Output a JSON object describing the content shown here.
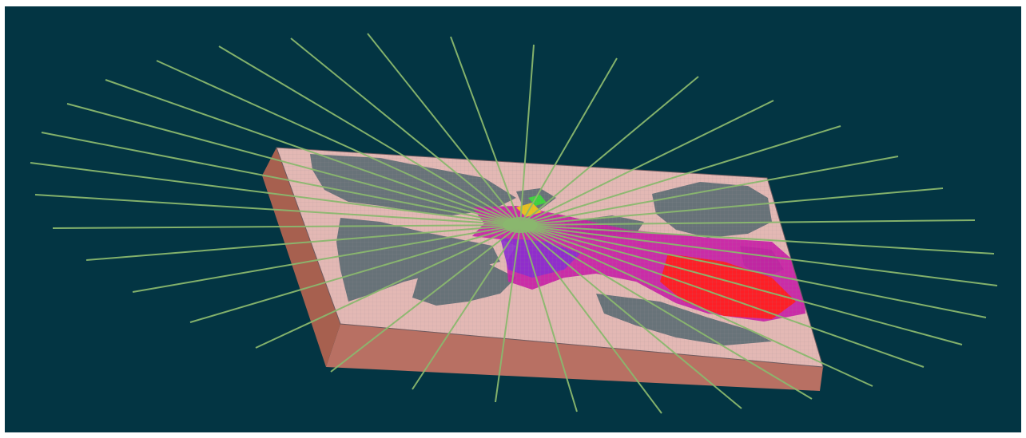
{
  "scene": {
    "description_name": "3d-terrain-slab-with-ray-fan",
    "colors": {
      "background": "#033543",
      "slab_top": "#e3b8b4",
      "slab_side_front": "#b87063",
      "slab_side_left": "#a7604f",
      "land": "#52666e",
      "ray": "#8ab86e",
      "plume_magenta": "#c81fa6",
      "plume_red": "#ff1f1f",
      "plume_violet": "#8a2ed0",
      "plume_yellow": "#e8c21e",
      "plume_green": "#3ed23e",
      "grid": "#9a8f93"
    }
  }
}
